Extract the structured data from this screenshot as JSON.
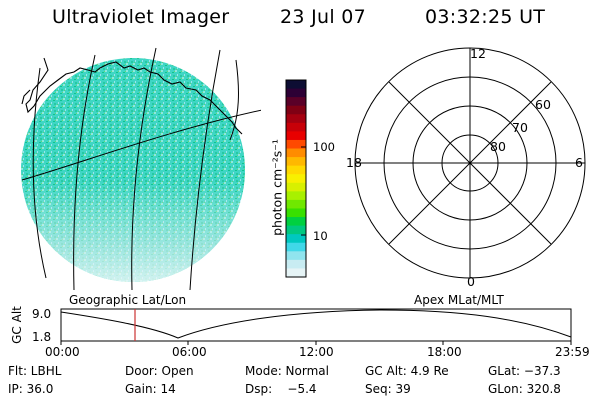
{
  "header": {
    "title": "Ultraviolet Imager",
    "date": "23 Jul 07",
    "time": "03:32:25 UT"
  },
  "geo_panel": {
    "label": "Geographic Lat/Lon"
  },
  "polar_panel": {
    "label": "Apex MLat/MLT",
    "mlt_labels": {
      "top": "12",
      "right": "6",
      "bottom": "0",
      "left": "18"
    },
    "lat_labels": [
      "60",
      "70",
      "80"
    ]
  },
  "colorbar": {
    "unit": "photon cm⁻²s⁻¹",
    "tick_labels": [
      "100",
      "10"
    ],
    "colors": [
      "#0d0d33",
      "#2d0035",
      "#5a0028",
      "#800014",
      "#a50010",
      "#c80008",
      "#e80000",
      "#ff4a00",
      "#ff8c00",
      "#ffb800",
      "#ffd900",
      "#f8f000",
      "#d8f000",
      "#a8f000",
      "#70e800",
      "#38e000",
      "#00d040",
      "#00c880",
      "#00c8c0",
      "#40d8e8",
      "#90e4ee",
      "#c8ecf2",
      "#e6f4f6"
    ]
  },
  "altitude_plot": {
    "ylabel": "GC Alt",
    "y_ticks": [
      "9.0",
      "1.8"
    ],
    "x_ticks": [
      "00:00",
      "06:00",
      "12:00",
      "18:00",
      "23:59"
    ]
  },
  "status": {
    "row1": [
      {
        "key": "flt",
        "text": "Flt: LBHL"
      },
      {
        "key": "door",
        "text": "Door: Open"
      },
      {
        "key": "mode",
        "text": "Mode: Normal"
      },
      {
        "key": "gcalt",
        "text": "GC Alt: 4.9 Re"
      },
      {
        "key": "glat",
        "text": "GLat: −37.3"
      }
    ],
    "row2": [
      {
        "key": "ip",
        "text": "IP: 36.0"
      },
      {
        "key": "gain",
        "text": "Gain: 14"
      },
      {
        "key": "dsp",
        "text": "Dsp:    −5.4"
      },
      {
        "key": "seq",
        "text": "Seq: 39"
      },
      {
        "key": "glon",
        "text": "GLon: 320.8"
      }
    ]
  },
  "colors": {
    "marker": "#cc3333",
    "grid": "#000000"
  }
}
